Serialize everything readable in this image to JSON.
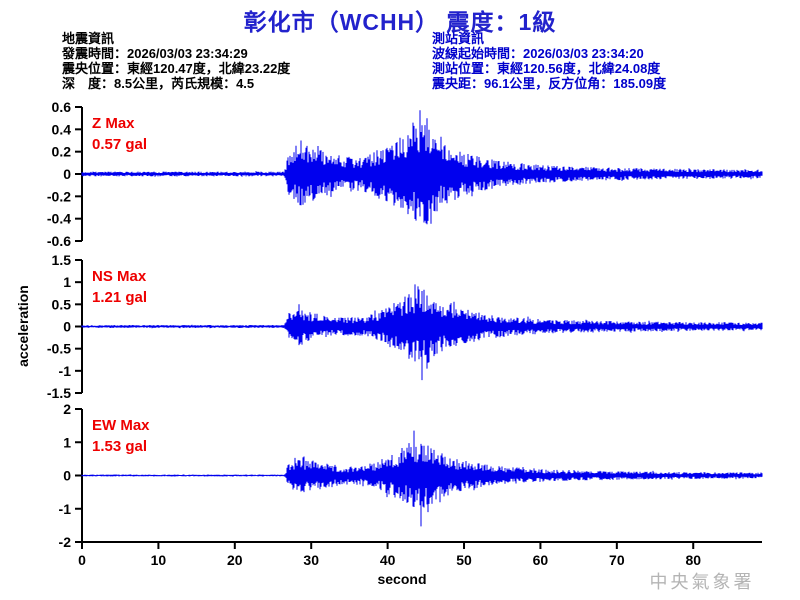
{
  "title": {
    "text": "彰化市（WCHH） 震度：1級"
  },
  "colors": {
    "title": "#2222cc",
    "event_info": "#000000",
    "station_info": "#0000cc",
    "channel_label": "#ee0000",
    "waveform": "#0000ee",
    "axis": "#000000",
    "watermark": "#b4b4b4"
  },
  "event_info": {
    "heading": "地震資訊",
    "lines": [
      "發震時間：2026/03/03 23:34:29",
      "震央位置：東經120.47度，北緯23.22度",
      "深　度：8.5公里，芮氏規模：4.5"
    ]
  },
  "station_info": {
    "heading": "測站資訊",
    "lines": [
      "波線起始時間：2026/03/03 23:34:20",
      "測站位置：東經120.56度，北緯24.08度",
      "震央距：96.1公里，反方位角：185.09度"
    ]
  },
  "watermark": "中央氣象署",
  "chart_data": {
    "type": "line",
    "subtype": "seismogram-3-channel",
    "xlabel": "second",
    "ylabel": "acceleration",
    "grid": false,
    "xlim": [
      0,
      89
    ],
    "x_ticks": [
      0,
      10,
      20,
      30,
      40,
      50,
      60,
      70,
      80
    ],
    "p_arrival_s": 27,
    "s_peak_s": 44.4,
    "channels": [
      {
        "name": "Z",
        "label": "Z Max",
        "max_label": "0.57 gal",
        "max_gal": 0.57,
        "ylim": [
          -0.6,
          0.6
        ],
        "y_ticks": [
          "0.6",
          "0.4",
          "0.2",
          "0",
          "-0.2",
          "-0.4",
          "-0.6"
        ],
        "envelope": [
          [
            0,
            0.022
          ],
          [
            26.5,
            0.022
          ],
          [
            27,
            0.22
          ],
          [
            28.5,
            0.28
          ],
          [
            31,
            0.22
          ],
          [
            33.5,
            0.15
          ],
          [
            37,
            0.16
          ],
          [
            40,
            0.26
          ],
          [
            42.5,
            0.36
          ],
          [
            44,
            0.5
          ],
          [
            45.5,
            0.42
          ],
          [
            47,
            0.3
          ],
          [
            50,
            0.19
          ],
          [
            54,
            0.13
          ],
          [
            58,
            0.09
          ],
          [
            63,
            0.07
          ],
          [
            70,
            0.055
          ],
          [
            80,
            0.045
          ],
          [
            89,
            0.04
          ]
        ],
        "spikes": [
          [
            44.2,
            0.57,
            0.38
          ],
          [
            43.3,
            0.46,
            0.33
          ],
          [
            45.1,
            0.5,
            0.45
          ],
          [
            28.6,
            0.3,
            0.28
          ]
        ],
        "seed": 11
      },
      {
        "name": "NS",
        "label": "NS Max",
        "max_label": "1.21 gal",
        "max_gal": 1.21,
        "ylim": [
          -1.5,
          1.5
        ],
        "y_ticks": [
          "1.5",
          "1",
          "0.5",
          "0",
          "-0.5",
          "-1",
          "-1.5"
        ],
        "envelope": [
          [
            0,
            0.035
          ],
          [
            26.5,
            0.035
          ],
          [
            27,
            0.3
          ],
          [
            28.5,
            0.42
          ],
          [
            30,
            0.32
          ],
          [
            33,
            0.2
          ],
          [
            37,
            0.22
          ],
          [
            40,
            0.45
          ],
          [
            42.5,
            0.7
          ],
          [
            44.2,
            0.95
          ],
          [
            45.5,
            0.8
          ],
          [
            47.5,
            0.55
          ],
          [
            50,
            0.4
          ],
          [
            53,
            0.28
          ],
          [
            57,
            0.2
          ],
          [
            62,
            0.15
          ],
          [
            70,
            0.12
          ],
          [
            80,
            0.1
          ],
          [
            89,
            0.09
          ]
        ],
        "spikes": [
          [
            44.5,
            0.8,
            1.21
          ],
          [
            43.6,
            0.95,
            0.7
          ],
          [
            45.2,
            0.7,
            0.95
          ],
          [
            28.4,
            0.5,
            0.42
          ]
        ],
        "seed": 22
      },
      {
        "name": "EW",
        "label": "EW Max",
        "max_label": "1.53 gal",
        "max_gal": 1.53,
        "ylim": [
          -2,
          2
        ],
        "y_ticks": [
          "2",
          "1",
          "0",
          "-1",
          "-2"
        ],
        "envelope": [
          [
            0,
            0.03
          ],
          [
            26.5,
            0.03
          ],
          [
            27,
            0.4
          ],
          [
            29,
            0.5
          ],
          [
            31.5,
            0.42
          ],
          [
            34,
            0.27
          ],
          [
            37.5,
            0.3
          ],
          [
            40,
            0.55
          ],
          [
            42.5,
            0.85
          ],
          [
            44.3,
            1.05
          ],
          [
            45.8,
            0.85
          ],
          [
            48,
            0.55
          ],
          [
            51,
            0.4
          ],
          [
            54,
            0.3
          ],
          [
            58,
            0.22
          ],
          [
            63,
            0.16
          ],
          [
            70,
            0.13
          ],
          [
            80,
            0.1
          ],
          [
            89,
            0.09
          ]
        ],
        "spikes": [
          [
            44.4,
            0.95,
            1.53
          ],
          [
            43.5,
            1.35,
            0.8
          ],
          [
            45.3,
            0.9,
            1.1
          ],
          [
            29.0,
            0.57,
            0.5
          ]
        ],
        "seed": 33
      }
    ]
  }
}
